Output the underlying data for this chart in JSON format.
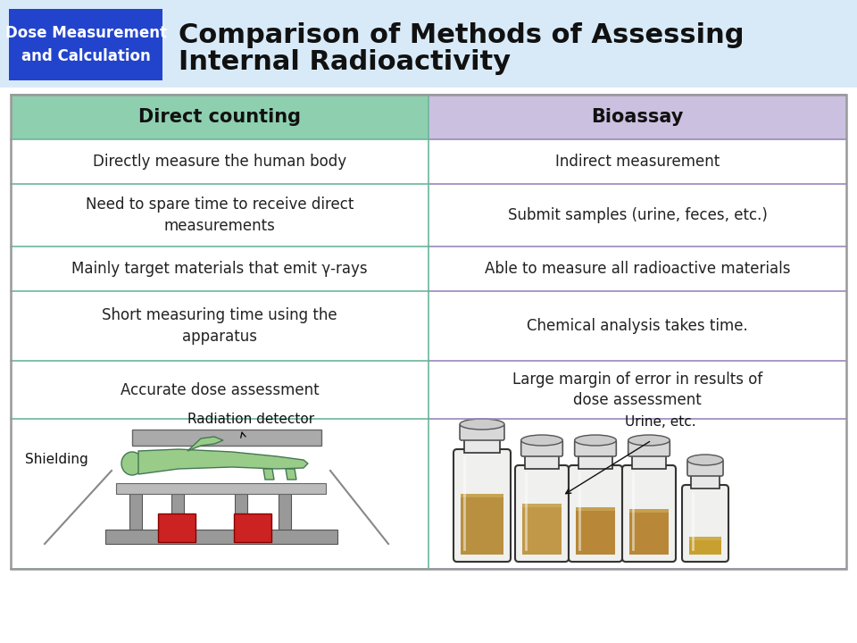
{
  "title_line1": "Comparison of Methods of Assessing",
  "title_line2": "Internal Radioactivity",
  "badge_text": "Dose Measurement\nand Calculation",
  "header_left": "Direct counting",
  "header_right": "Bioassay",
  "rows": [
    [
      "Directly measure the human body",
      "Indirect measurement"
    ],
    [
      "Need to spare time to receive direct\nmeasurements",
      "Submit samples (urine, feces, etc.)"
    ],
    [
      "Mainly target materials that emit γ-rays",
      "Able to measure all radioactive materials"
    ],
    [
      "Short measuring time using the\napparatus",
      "Chemical analysis takes time."
    ],
    [
      "Accurate dose assessment",
      "Large margin of error in results of\ndose assessment"
    ]
  ],
  "header_bg_left": "#8ecfb0",
  "header_bg_right": "#ccc0e0",
  "title_bg": "#d8eaf8",
  "badge_bg": "#2244cc",
  "badge_text_color": "#ffffff",
  "title_color": "#111111",
  "header_text_color": "#111111",
  "cell_text_color": "#222222",
  "border_color_left": "#6ab898",
  "border_color_right": "#9988bb",
  "border_color_outer": "#999999",
  "annotation_shielding": "Shielding",
  "annotation_detector": "Radiation detector",
  "annotation_urine": "Urine, etc.",
  "figw": 9.6,
  "figh": 7.2,
  "dpi": 100
}
